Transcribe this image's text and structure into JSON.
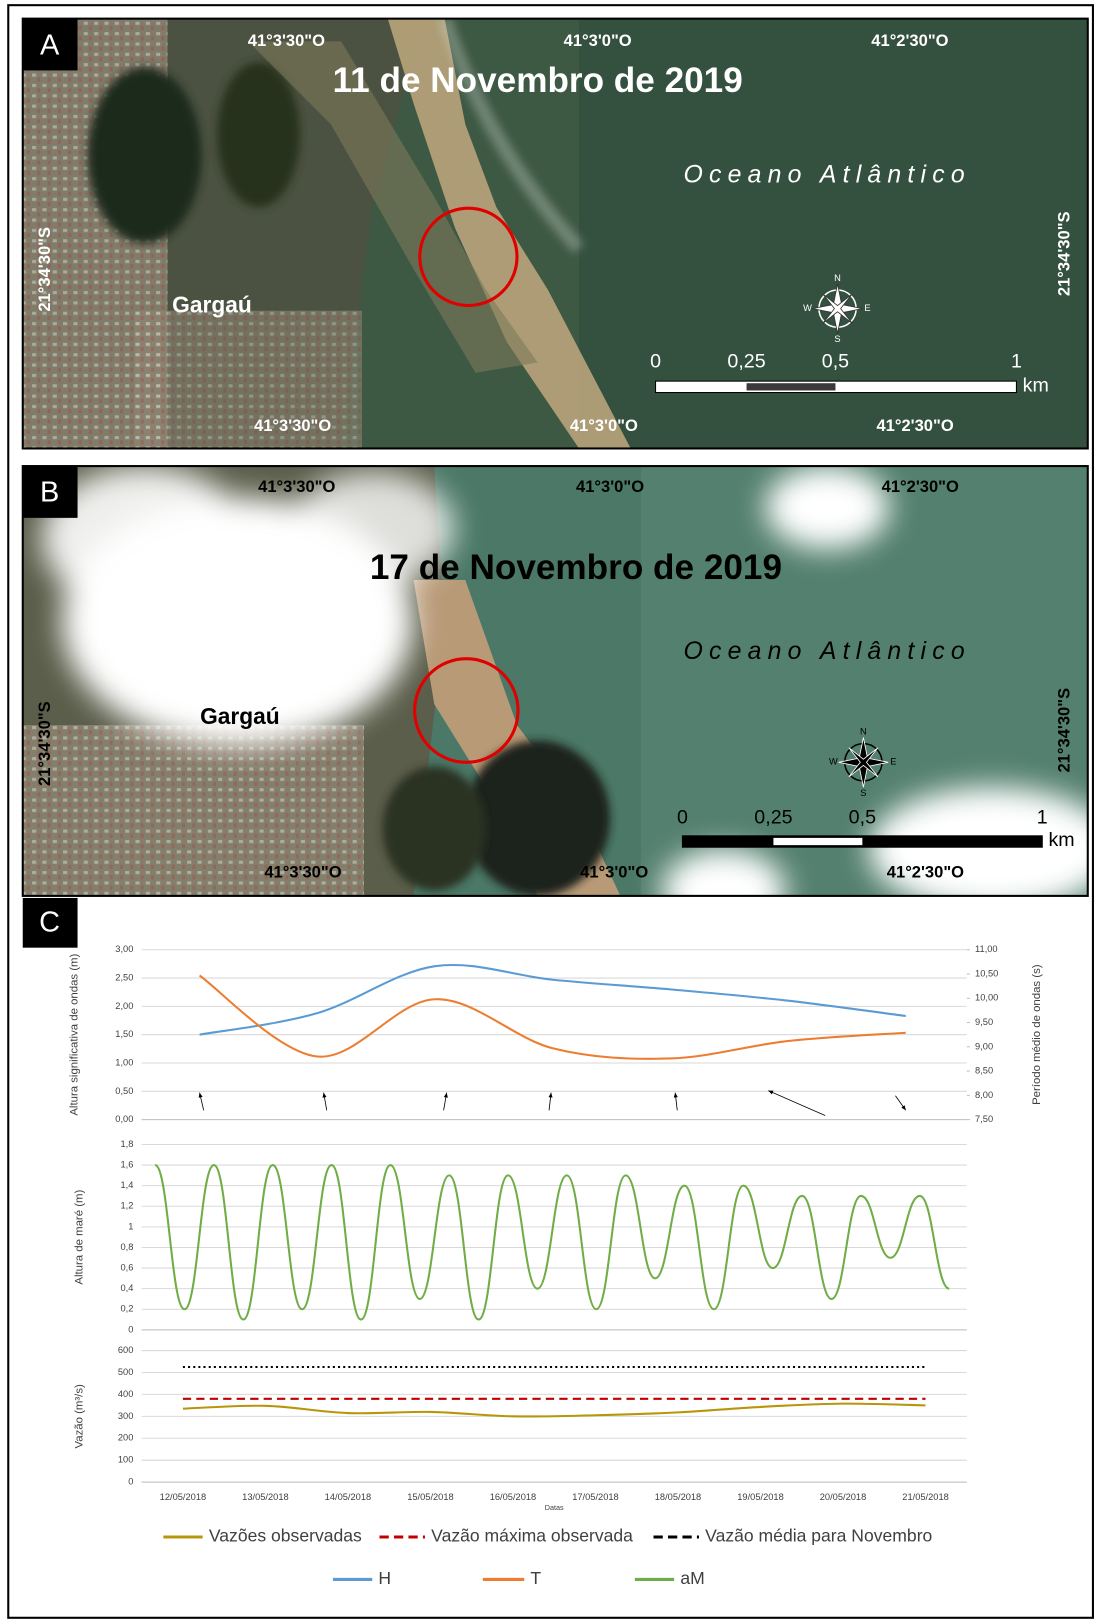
{
  "panels": [
    {
      "letter": "A",
      "date_title": "11 de Novembro de 2019",
      "ocean_label": "Oceano Atlântico",
      "place": "Gargaú",
      "top_coords": [
        "41°3'30\"O",
        "41°3'0\"O",
        "41°2'30\"O"
      ],
      "bottom_coords": [
        "41°3'30\"O",
        "41°3'0\"O",
        "41°2'30\"O"
      ],
      "lat_left": "21°34'30\"S",
      "lat_right": "21°34'30\"S",
      "scale_labels": [
        "0",
        "0,25",
        "0,5",
        "1"
      ],
      "scale_unit": "km",
      "compass": [
        "N",
        "E",
        "S",
        "W"
      ]
    },
    {
      "letter": "B",
      "date_title": "17 de Novembro de 2019",
      "ocean_label": "Oceano Atlântico",
      "place": "Gargaú",
      "top_coords": [
        "41°3'30\"O",
        "41°3'0\"O",
        "41°2'30\"O"
      ],
      "bottom_coords": [
        "41°3'30\"O",
        "41°3'0\"O",
        "41°2'30\"O"
      ],
      "lat_left": "21°34'30\"S",
      "lat_right": "21°34'30\"S",
      "scale_labels": [
        "0",
        "0,25",
        "0,5",
        "1"
      ],
      "scale_unit": "km",
      "compass": [
        "N",
        "E",
        "S",
        "W"
      ]
    }
  ],
  "chart_letter": "C",
  "chart_data": [
    {
      "type": "line",
      "ylabel": "Altura significativa de ondas (m)",
      "y2label": "Período médio de ondas (s)",
      "categories": [
        null,
        null,
        null,
        null,
        null,
        null,
        null
      ],
      "series": [
        {
          "name": "H",
          "color": "#5b9bd5",
          "values": [
            1.5,
            1.88,
            2.71,
            2.47,
            2.3,
            2.1,
            1.83
          ]
        },
        {
          "name": "T",
          "color": "#ed7d31",
          "axis": "y2",
          "values": [
            10.47,
            8.8,
            9.98,
            8.97,
            8.76,
            9.12,
            9.29
          ]
        }
      ],
      "ylim": [
        0,
        3
      ],
      "yticks": [
        {
          "value": 0,
          "label": "0,00"
        },
        {
          "value": 0.5,
          "label": "0,50"
        },
        {
          "value": 1,
          "label": "1,00"
        },
        {
          "value": 1.5,
          "label": "1,50"
        },
        {
          "value": 2,
          "label": "2,00"
        },
        {
          "value": 2.5,
          "label": "2,50"
        },
        {
          "value": 3,
          "label": "3,00"
        }
      ],
      "y2lim": [
        7.5,
        11
      ],
      "y2ticks": [
        {
          "value": 7.5,
          "label": "7,50"
        },
        {
          "value": 8,
          "label": "8,00"
        },
        {
          "value": 8.5,
          "label": "8,50"
        },
        {
          "value": 9,
          "label": "9,00"
        },
        {
          "value": 9.5,
          "label": "9,50"
        },
        {
          "value": 10,
          "label": "10,00"
        },
        {
          "value": 10.5,
          "label": "10,50"
        },
        {
          "value": 11,
          "label": "11,00"
        }
      ],
      "grid": true
    },
    {
      "type": "line",
      "ylabel": "Altura de maré (m)",
      "categories": [
        null,
        null,
        null,
        null,
        null,
        null,
        null,
        null,
        null,
        null,
        null,
        null,
        null,
        null,
        null,
        null,
        null,
        null,
        null,
        null,
        null,
        null,
        null,
        null,
        null,
        null,
        null,
        null
      ],
      "series": [
        {
          "name": "aM",
          "color": "#70ad47",
          "values": [
            1.6,
            0.2,
            1.6,
            0.1,
            1.6,
            0.2,
            1.6,
            0.1,
            1.6,
            0.3,
            1.5,
            0.1,
            1.5,
            0.4,
            1.5,
            0.2,
            1.5,
            0.5,
            1.4,
            0.2,
            1.4,
            0.6,
            1.3,
            0.3,
            1.3,
            0.7,
            1.3,
            0.4
          ]
        }
      ],
      "ylim": [
        0,
        1.8
      ],
      "yticks": [
        0,
        {
          "value": 0.2,
          "label": "0,2"
        },
        {
          "value": 0.4,
          "label": "0,4"
        },
        {
          "value": 0.6,
          "label": "0,6"
        },
        {
          "value": 0.8,
          "label": "0,8"
        },
        1,
        {
          "value": 1.2,
          "label": "1,2"
        },
        {
          "value": 1.4,
          "label": "1,4"
        },
        {
          "value": 1.6,
          "label": "1,6"
        },
        {
          "value": 1.8,
          "label": "1,8"
        }
      ],
      "grid": true
    },
    {
      "type": "line",
      "ylabel": "Vazão (m³/s)",
      "xlabel": "Datas",
      "categories": [
        "12/05/2018",
        "13/05/2018",
        "14/05/2018",
        "15/05/2018",
        "16/05/2018",
        "17/05/2018",
        "18/05/2018",
        "19/05/2018",
        "20/05/2018",
        "21/05/2018"
      ],
      "series": [
        {
          "name": "Vazões observadas",
          "color": "#b8960c",
          "values": [
            335,
            348,
            315,
            320,
            300,
            305,
            318,
            343,
            358,
            350
          ]
        },
        {
          "name": "Vazão máxima observada",
          "color": "#c00000",
          "dash": "dashed",
          "values": [
            380,
            380,
            380,
            380,
            380,
            380,
            380,
            380,
            380,
            380
          ]
        },
        {
          "name": "Vazão média para Novembro",
          "color": "#000000",
          "dash": "dotted",
          "values": [
            525,
            525,
            525,
            525,
            525,
            525,
            525,
            525,
            525,
            525
          ]
        }
      ],
      "ylim": [
        0,
        600
      ],
      "yticks": [
        0,
        100,
        200,
        300,
        400,
        500,
        600
      ],
      "grid": true
    }
  ]
}
